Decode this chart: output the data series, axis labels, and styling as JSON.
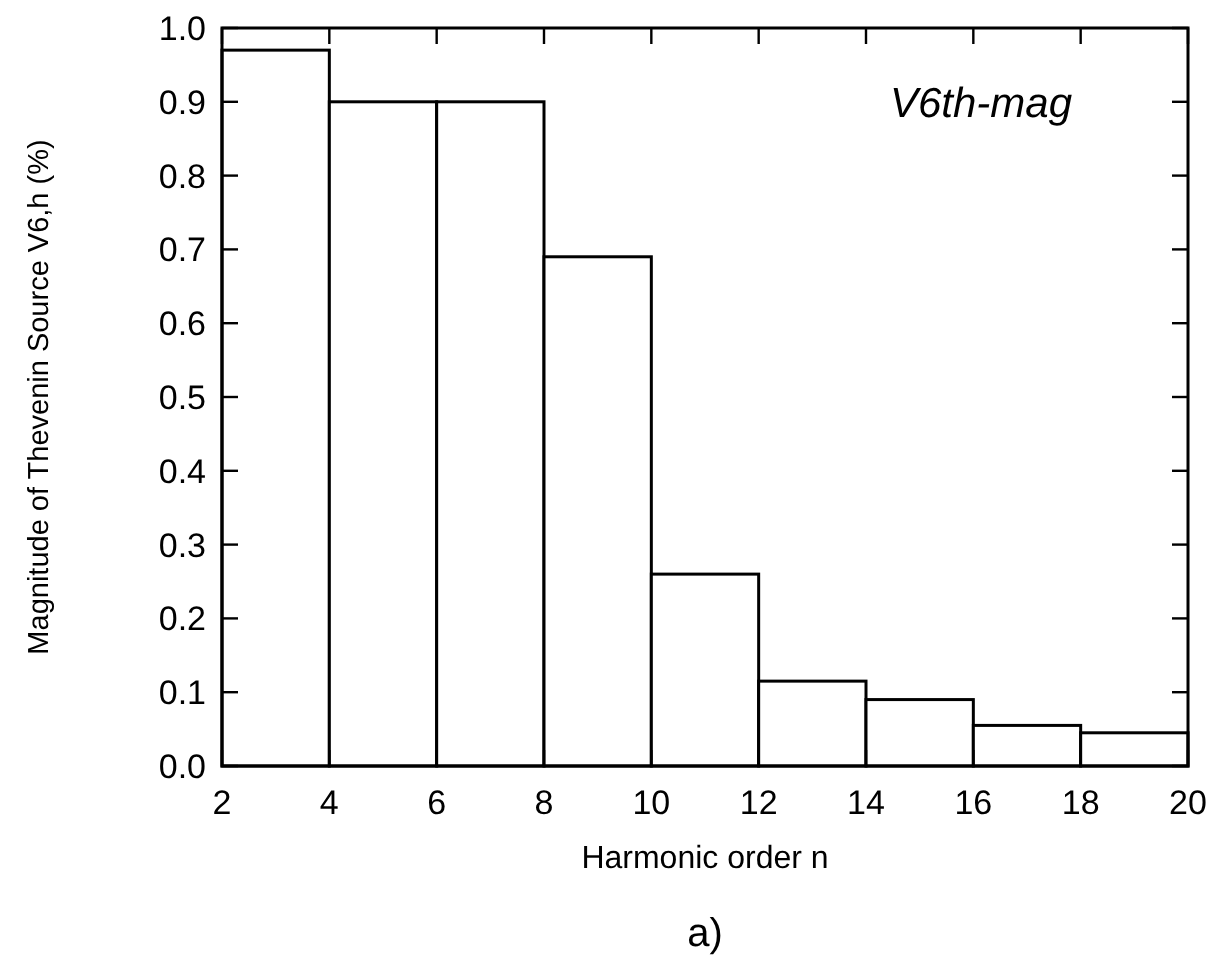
{
  "chart_data": {
    "type": "histogram",
    "xlabel": "Harmonic order n",
    "ylabel": "Magnitude of Thevenin Source V6,h (%)",
    "bins": [
      2,
      4,
      6,
      8,
      10,
      12,
      14,
      16,
      18,
      20
    ],
    "values": [
      0.97,
      0.9,
      0.9,
      0.69,
      0.26,
      0.115,
      0.09,
      0.055,
      0.045
    ],
    "color": "#ffffff",
    "xlim": [
      2,
      20
    ],
    "xticks": [
      2,
      4,
      6,
      8,
      10,
      12,
      14,
      16,
      18,
      20
    ],
    "ylim": [
      0,
      1
    ],
    "yticks": [
      {
        "value": 0,
        "label": "0.0"
      },
      0.1,
      0.2,
      0.3,
      0.4,
      0.5,
      0.6,
      0.7,
      0.8,
      0.9,
      {
        "value": 1,
        "label": "1.0"
      }
    ],
    "grid": false,
    "annotations": [
      "V6th-mag",
      "a)"
    ]
  }
}
